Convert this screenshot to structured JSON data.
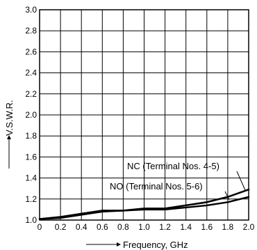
{
  "chart_data": {
    "type": "line",
    "xlabel": "Frequency, GHz",
    "ylabel": "V.S.W.R.",
    "xlim": [
      0,
      2.0
    ],
    "ylim": [
      1.0,
      3.0
    ],
    "x_ticks": [
      "0",
      "0.2",
      "0.4",
      "0.6",
      "0.8",
      "1.0",
      "1.2",
      "1.4",
      "1.6",
      "1.8",
      "2.0"
    ],
    "y_ticks": [
      "1.0",
      "1.2",
      "1.4",
      "1.6",
      "1.8",
      "2.0",
      "2.2",
      "2.4",
      "2.6",
      "2.8",
      "3.0"
    ],
    "grid": true,
    "series": [
      {
        "name": "NC (Terminal Nos. 4-5)",
        "x": [
          0,
          0.2,
          0.4,
          0.6,
          0.8,
          1.0,
          1.2,
          1.4,
          1.6,
          1.8,
          2.0
        ],
        "y": [
          1.01,
          1.03,
          1.06,
          1.09,
          1.09,
          1.11,
          1.11,
          1.14,
          1.17,
          1.22,
          1.29
        ]
      },
      {
        "name": "NO (Terminal Nos. 5-6)",
        "x": [
          0,
          0.2,
          0.4,
          0.6,
          0.8,
          1.0,
          1.2,
          1.4,
          1.6,
          1.8,
          2.0
        ],
        "y": [
          1.01,
          1.02,
          1.05,
          1.08,
          1.09,
          1.1,
          1.1,
          1.12,
          1.14,
          1.17,
          1.22
        ]
      }
    ]
  }
}
